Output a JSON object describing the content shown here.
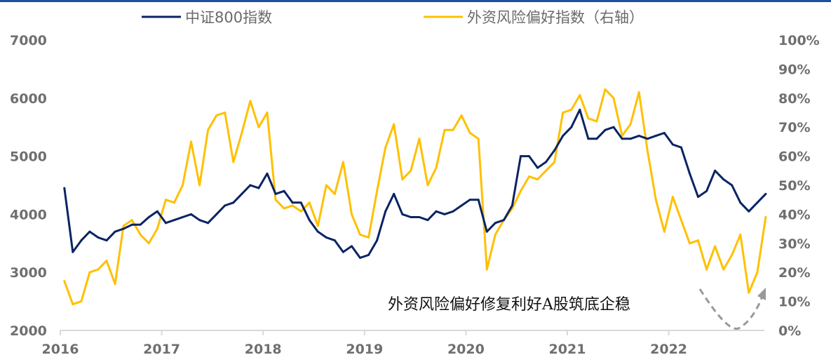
{
  "chart_data": {
    "type": "line",
    "title": "",
    "xlabel": "",
    "ylabel": "",
    "x_ticks": [
      "2016",
      "2017",
      "2018",
      "2019",
      "2020",
      "2021",
      "2022"
    ],
    "y_left": {
      "lim": [
        2000,
        7000
      ],
      "ticks": [
        "2000",
        "3000",
        "4000",
        "5000",
        "6000",
        "7000"
      ]
    },
    "y_right": {
      "lim": [
        0,
        100
      ],
      "unit": "%",
      "ticks": [
        "0%",
        "10%",
        "20%",
        "30%",
        "40%",
        "50%",
        "60%",
        "70%",
        "80%",
        "90%",
        "100%"
      ]
    },
    "grid": false,
    "legend_position": "top",
    "annotation": "外资风险偏好修复利好A股筑底企稳",
    "x": [
      "2016-01",
      "2016-02",
      "2016-03",
      "2016-04",
      "2016-05",
      "2016-06",
      "2016-07",
      "2016-08",
      "2016-09",
      "2016-10",
      "2016-11",
      "2016-12",
      "2017-01",
      "2017-02",
      "2017-03",
      "2017-04",
      "2017-05",
      "2017-06",
      "2017-07",
      "2017-08",
      "2017-09",
      "2017-10",
      "2017-11",
      "2017-12",
      "2018-01",
      "2018-02",
      "2018-03",
      "2018-04",
      "2018-05",
      "2018-06",
      "2018-07",
      "2018-08",
      "2018-09",
      "2018-10",
      "2018-11",
      "2018-12",
      "2019-01",
      "2019-02",
      "2019-03",
      "2019-04",
      "2019-05",
      "2019-06",
      "2019-07",
      "2019-08",
      "2019-09",
      "2019-10",
      "2019-11",
      "2019-12",
      "2020-01",
      "2020-02",
      "2020-03",
      "2020-04",
      "2020-05",
      "2020-06",
      "2020-07",
      "2020-08",
      "2020-09",
      "2020-10",
      "2020-11",
      "2020-12",
      "2021-01",
      "2021-02",
      "2021-03",
      "2021-04",
      "2021-05",
      "2021-06",
      "2021-07",
      "2021-08",
      "2021-09",
      "2021-10",
      "2021-11",
      "2021-12",
      "2022-01",
      "2022-02",
      "2022-03",
      "2022-04",
      "2022-05",
      "2022-06",
      "2022-07",
      "2022-08",
      "2022-09",
      "2022-10",
      "2022-11",
      "2022-12"
    ],
    "series": [
      {
        "name": "中证800指数",
        "axis": "left",
        "color": "#0a2463",
        "values": [
          4450,
          3350,
          3550,
          3700,
          3600,
          3550,
          3700,
          3750,
          3820,
          3820,
          3950,
          4050,
          3850,
          3900,
          3950,
          4000,
          3900,
          3850,
          4000,
          4150,
          4200,
          4350,
          4500,
          4450,
          4700,
          4350,
          4400,
          4200,
          4200,
          3900,
          3700,
          3600,
          3550,
          3350,
          3450,
          3250,
          3300,
          3550,
          4050,
          4350,
          4000,
          3950,
          3950,
          3900,
          4050,
          4000,
          4050,
          4150,
          4250,
          4250,
          3700,
          3850,
          3900,
          4150,
          5000,
          5000,
          4800,
          4900,
          5100,
          5350,
          5500,
          5800,
          5300,
          5300,
          5450,
          5500,
          5300,
          5300,
          5350,
          5300,
          5350,
          5400,
          5200,
          5150,
          4700,
          4300,
          4400,
          4750,
          4600,
          4500,
          4200,
          4050,
          4200,
          4350
        ]
      },
      {
        "name": "外资风险偏好指数（右轴）",
        "axis": "right",
        "color": "#ffc000",
        "values": [
          17,
          9,
          10,
          20,
          21,
          24,
          16,
          36,
          38,
          33,
          30,
          35,
          45,
          44,
          50,
          65,
          50,
          69,
          74,
          75,
          58,
          68,
          79,
          70,
          75,
          45,
          42,
          43,
          41,
          44,
          36,
          50,
          47,
          58,
          40,
          33,
          32,
          48,
          63,
          71,
          52,
          55,
          66,
          50,
          56,
          69,
          69,
          74,
          68,
          66,
          21,
          33,
          38,
          42,
          48,
          53,
          52,
          55,
          58,
          75,
          76,
          81,
          73,
          72,
          83,
          80,
          67,
          71,
          82,
          62,
          45,
          34,
          46,
          38,
          30,
          31,
          21,
          29,
          21,
          26,
          33,
          13,
          20,
          39
        ]
      }
    ]
  }
}
